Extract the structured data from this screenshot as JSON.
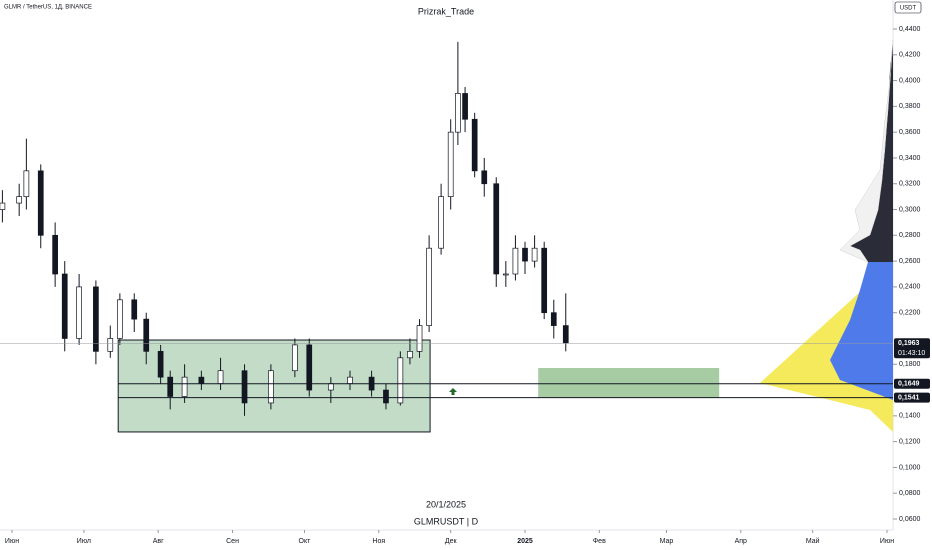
{
  "chart_data": {
    "type": "candlestick",
    "title": "Prizrak_Trade",
    "symbol": "GLMR / TetherUS, 1Д, BINANCE",
    "currency": "USDT",
    "date_label": "20/1/2025",
    "footer": "GLMRUSDT | D",
    "countdown": "01:43:10",
    "x": [
      -4,
      3,
      6,
      12,
      18,
      22,
      28,
      35,
      41,
      45,
      51,
      56,
      62,
      66,
      72,
      79,
      87,
      97,
      108,
      118,
      124,
      133,
      141,
      150,
      156,
      162,
      166,
      170,
      174,
      179,
      183,
      186,
      189,
      193,
      197,
      202,
      206,
      210,
      214,
      218,
      222,
      226,
      231
    ],
    "open": [
      0.3,
      0.305,
      0.31,
      0.33,
      0.28,
      0.25,
      0.2,
      0.24,
      0.19,
      0.2,
      0.23,
      0.215,
      0.19,
      0.17,
      0.155,
      0.17,
      0.165,
      0.175,
      0.15,
      0.175,
      0.195,
      0.16,
      0.165,
      0.17,
      0.16,
      0.15,
      0.185,
      0.19,
      0.21,
      0.27,
      0.31,
      0.36,
      0.39,
      0.37,
      0.33,
      0.32,
      0.25,
      0.25,
      0.27,
      0.26,
      0.27,
      0.22,
      0.21
    ],
    "high": [
      0.315,
      0.32,
      0.355,
      0.335,
      0.29,
      0.26,
      0.25,
      0.245,
      0.21,
      0.235,
      0.235,
      0.22,
      0.195,
      0.175,
      0.18,
      0.175,
      0.185,
      0.18,
      0.18,
      0.2,
      0.2,
      0.17,
      0.175,
      0.175,
      0.165,
      0.19,
      0.2,
      0.215,
      0.28,
      0.32,
      0.37,
      0.43,
      0.395,
      0.375,
      0.34,
      0.325,
      0.26,
      0.28,
      0.275,
      0.28,
      0.275,
      0.23,
      0.235
    ],
    "low": [
      0.29,
      0.295,
      0.3,
      0.27,
      0.24,
      0.19,
      0.195,
      0.18,
      0.185,
      0.195,
      0.205,
      0.18,
      0.165,
      0.145,
      0.15,
      0.16,
      0.16,
      0.14,
      0.145,
      0.17,
      0.155,
      0.15,
      0.16,
      0.155,
      0.145,
      0.148,
      0.18,
      0.185,
      0.205,
      0.265,
      0.3,
      0.35,
      0.36,
      0.325,
      0.31,
      0.24,
      0.24,
      0.245,
      0.25,
      0.255,
      0.215,
      0.2,
      0.19
    ],
    "close": [
      0.305,
      0.31,
      0.33,
      0.28,
      0.25,
      0.2,
      0.24,
      0.19,
      0.2,
      0.23,
      0.215,
      0.19,
      0.17,
      0.155,
      0.17,
      0.165,
      0.175,
      0.15,
      0.175,
      0.195,
      0.16,
      0.165,
      0.17,
      0.16,
      0.15,
      0.185,
      0.19,
      0.21,
      0.27,
      0.31,
      0.36,
      0.39,
      0.37,
      0.33,
      0.32,
      0.25,
      0.25,
      0.27,
      0.26,
      0.27,
      0.22,
      0.21,
      0.1963
    ],
    "up_color": "#ffffff",
    "down_color": "#131722",
    "xlim": [
      -5,
      367.5
    ],
    "ylim": [
      0.06,
      0.44
    ],
    "xticks": [
      {
        "value": 0,
        "label": "Июн"
      },
      {
        "value": 30,
        "label": "Июл"
      },
      {
        "value": 61,
        "label": "Авг"
      },
      {
        "value": 92,
        "label": "Сен"
      },
      {
        "value": 122,
        "label": "Окт"
      },
      {
        "value": 153,
        "label": "Ноя"
      },
      {
        "value": 183,
        "label": "Дек"
      },
      {
        "value": 214,
        "label": "2025"
      },
      {
        "value": 245,
        "label": "Фев"
      },
      {
        "value": 273,
        "label": "Мар"
      },
      {
        "value": 304,
        "label": "Апр"
      },
      {
        "value": 334,
        "label": "Май"
      },
      {
        "value": 365,
        "label": "Июн"
      }
    ],
    "yticks": [
      {
        "value": 0.06,
        "label": "0,0600"
      },
      {
        "value": 0.08,
        "label": "0,0800"
      },
      {
        "value": 0.1,
        "label": "0,1000"
      },
      {
        "value": 0.12,
        "label": "0,1200"
      },
      {
        "value": 0.14,
        "label": "0,1400"
      },
      {
        "value": 0.18,
        "label": "0,1800"
      },
      {
        "value": 0.22,
        "label": "0,2200"
      },
      {
        "value": 0.24,
        "label": "0,2400"
      },
      {
        "value": 0.26,
        "label": "0,2600"
      },
      {
        "value": 0.28,
        "label": "0,2800"
      },
      {
        "value": 0.3,
        "label": "0,3000"
      },
      {
        "value": 0.32,
        "label": "0,3200"
      },
      {
        "value": 0.34,
        "label": "0,3400"
      },
      {
        "value": 0.36,
        "label": "0,3600"
      },
      {
        "value": 0.38,
        "label": "0,3800"
      },
      {
        "value": 0.4,
        "label": "0,4000"
      },
      {
        "value": 0.42,
        "label": "0,4200"
      },
      {
        "value": 0.44,
        "label": "0,4400"
      }
    ],
    "price_lines": [
      {
        "value": 0.1963,
        "label": "0,1963"
      },
      {
        "value": 0.1649,
        "label": "0,1649"
      },
      {
        "value": 0.1541,
        "label": "0,1541"
      }
    ],
    "boxes": [
      {
        "xlim": [
          44.3,
          174.4
        ],
        "ylim": [
          0.1275,
          0.1988
        ],
        "color": "#8fbf9a"
      },
      {
        "xlim": [
          219.5,
          295
        ],
        "ylim": [
          0.1538,
          0.1771
        ],
        "color": "#5fa35a"
      }
    ]
  }
}
